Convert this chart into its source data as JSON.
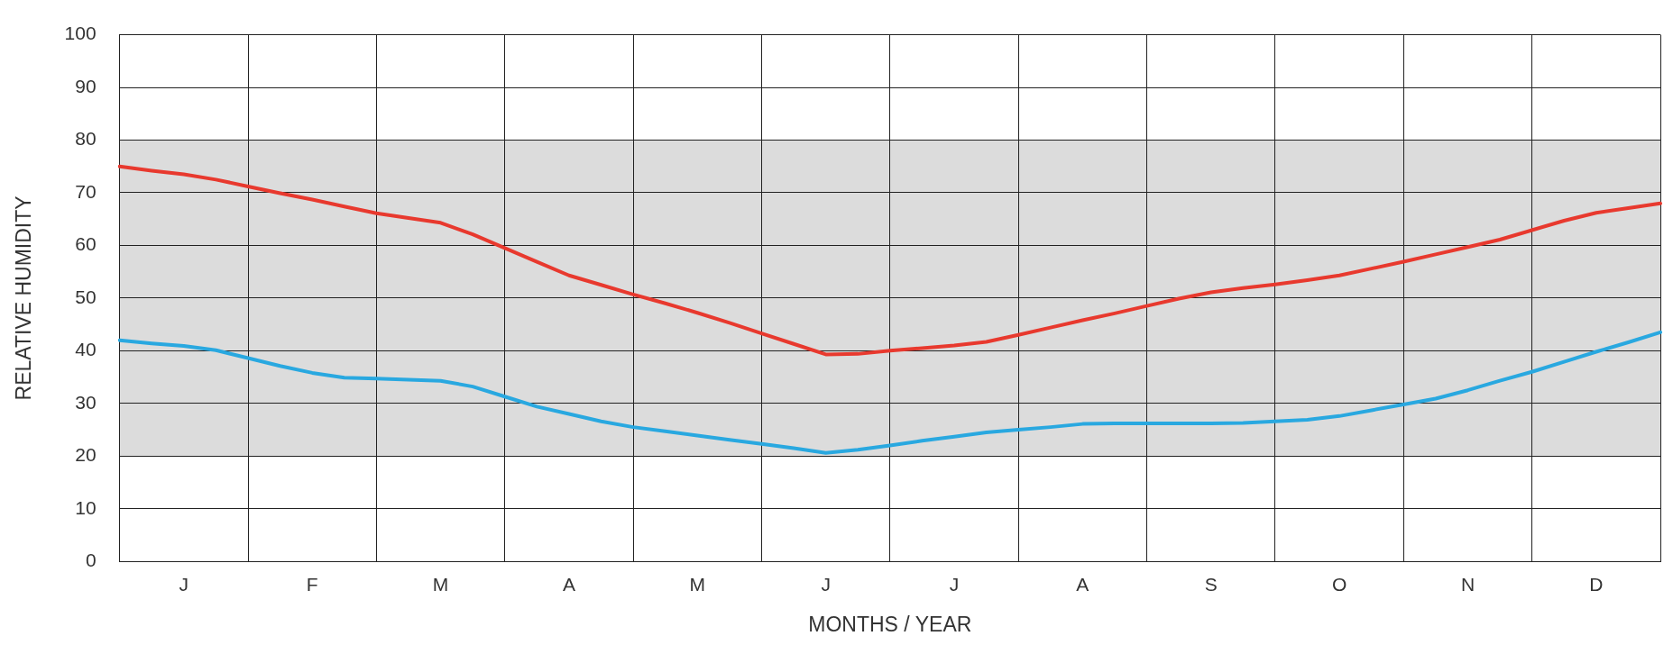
{
  "chart_data": {
    "type": "line",
    "xlabel": "MONTHS / YEAR",
    "ylabel": "RELATIVE HUMIDITY",
    "categories": [
      null,
      null,
      "J",
      null,
      null,
      null,
      "F",
      null,
      null,
      null,
      "M",
      null,
      null,
      null,
      "A",
      null,
      null,
      null,
      "M",
      null,
      null,
      null,
      "J",
      null,
      null,
      null,
      "J",
      null,
      null,
      null,
      "A",
      null,
      null,
      null,
      "S",
      null,
      null,
      null,
      "O",
      null,
      null,
      null,
      "N",
      null,
      null,
      null,
      "D",
      null,
      null
    ],
    "ylim": [
      0,
      100
    ],
    "yticks": [
      0,
      10,
      20,
      30,
      40,
      50,
      60,
      70,
      80,
      90,
      100
    ],
    "series": [
      {
        "color": "#e8392e",
        "values": [
          75,
          74.2,
          73.5,
          72.5,
          71.2,
          69.9,
          68.7,
          67.4,
          66.1,
          65.2,
          64.3,
          62.1,
          59.5,
          56.9,
          54.3,
          52.5,
          50.7,
          49,
          47.2,
          45.3,
          43.3,
          41.3,
          39.3,
          39.4,
          40,
          40.5,
          41,
          41.7,
          43,
          44.4,
          45.8,
          47.1,
          48.5,
          49.9,
          51.1,
          51.9,
          52.6,
          53.4,
          54.3,
          55.6,
          56.9,
          58.3,
          59.7,
          61.1,
          62.9,
          64.7,
          66.2,
          67.1,
          68
        ]
      },
      {
        "color": "#29a8e0",
        "values": [
          42,
          41.4,
          40.9,
          40.1,
          38.6,
          37.1,
          35.8,
          34.9,
          34.7,
          34.5,
          34.3,
          33.2,
          31.3,
          29.4,
          28,
          26.6,
          25.5,
          24.7,
          23.9,
          23.1,
          22.3,
          21.5,
          20.6,
          21.2,
          22,
          22.9,
          23.7,
          24.5,
          25,
          25.5,
          26.1,
          26.2,
          26.2,
          26.2,
          26.2,
          26.3,
          26.6,
          26.9,
          27.6,
          28.7,
          29.8,
          30.9,
          32.5,
          34.3,
          36,
          37.9,
          39.8,
          41.6,
          43.5
        ]
      }
    ],
    "bands": [
      {
        "axis": "y",
        "from": 20,
        "to": 80,
        "color": "#dcdcdc"
      }
    ],
    "grid": true,
    "marker": "none",
    "line_style": "solid"
  }
}
